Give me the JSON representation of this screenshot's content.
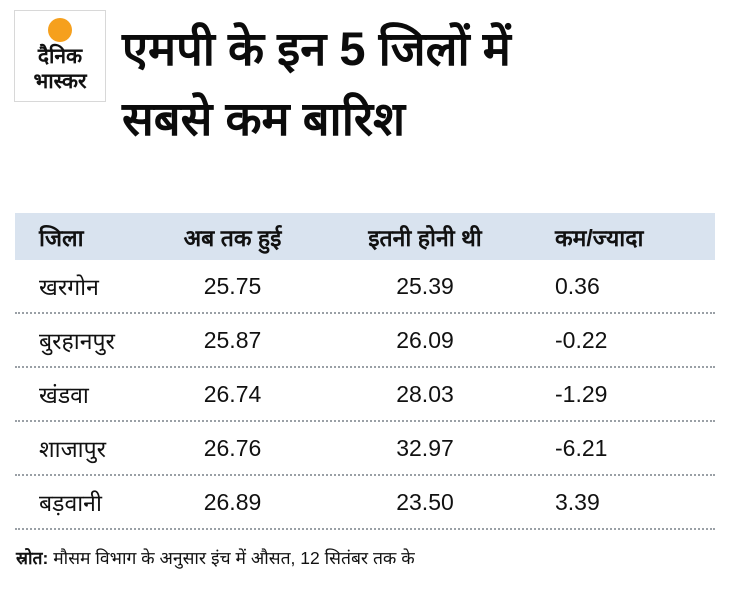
{
  "logo": {
    "line1": "दैनिक",
    "line2": "भास्कर"
  },
  "title": {
    "line1": "एमपी के इन 5 जिलों में",
    "line2": "सबसे कम बारिश"
  },
  "source": {
    "label": "स्रोत:",
    "text": "मौसम विभाग के अनुसार इंच में औसत, 12 सितंबर तक के"
  },
  "colors": {
    "header_bg": "#d9e3ef",
    "sun": "#f6a01d"
  },
  "chart_data": {
    "type": "table",
    "title": "एमपी के इन 5 जिलों में सबसे कम बारिश",
    "columns": [
      "जिला",
      "अब तक हुई",
      "इतनी होनी थी",
      "कम/ज्यादा"
    ],
    "rows": [
      [
        "खरगोन",
        "25.75",
        "25.39",
        "0.36"
      ],
      [
        "बुरहानपुर",
        "25.87",
        "26.09",
        "-0.22"
      ],
      [
        "खंडवा",
        "26.74",
        "28.03",
        "-1.29"
      ],
      [
        "शाजापुर",
        "26.76",
        "32.97",
        "-6.21"
      ],
      [
        "बड़वानी",
        "26.89",
        "23.50",
        "3.39"
      ]
    ],
    "note": "स्रोत: मौसम विभाग के अनुसार इंच में औसत, 12 सितंबर तक के",
    "legend": "off",
    "grid": "dotted row separators"
  }
}
